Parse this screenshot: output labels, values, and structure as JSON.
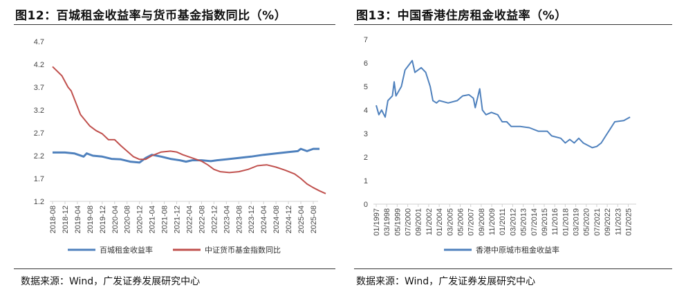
{
  "left": {
    "title": "图12：百城租金收益率与货币基金指数同比（%）",
    "source": "数据来源：Wind，广发证券发展研究中心"
  },
  "right": {
    "title": "图13：中国香港住房租金收益率（%）",
    "source": "数据来源：Wind，广发证券发展研究中心"
  },
  "chart_data": [
    {
      "type": "line",
      "title": "百城租金收益率与货币基金指数同比（%）",
      "ylim": [
        1.2,
        4.7
      ],
      "yticks": [
        "1.2",
        "1.7",
        "2.2",
        "2.7",
        "3.2",
        "3.7",
        "4.2",
        "4.7"
      ],
      "xticks": [
        "2018-08",
        "2018-12",
        "2019-04",
        "2019-08",
        "2019-12",
        "2020-04",
        "2020-08",
        "2020-12",
        "2021-04",
        "2021-08",
        "2021-12",
        "2022-04",
        "2022-08",
        "2022-12",
        "2023-04",
        "2023-08",
        "2023-12",
        "2024-04",
        "2024-08",
        "2024-12",
        "2025-04",
        "2025-08"
      ],
      "x_unit": "months since 2018-08",
      "legend": "bottom",
      "series": [
        {
          "name": "百城租金收益率",
          "color": "#4F81BD",
          "points": [
            [
              0,
              2.27
            ],
            [
              4,
              2.27
            ],
            [
              7,
              2.25
            ],
            [
              10,
              2.18
            ],
            [
              11,
              2.25
            ],
            [
              13,
              2.2
            ],
            [
              16,
              2.18
            ],
            [
              19,
              2.13
            ],
            [
              22,
              2.12
            ],
            [
              25,
              2.07
            ],
            [
              28,
              2.05
            ],
            [
              30,
              2.15
            ],
            [
              32,
              2.22
            ],
            [
              35,
              2.18
            ],
            [
              38,
              2.13
            ],
            [
              41,
              2.1
            ],
            [
              43,
              2.07
            ],
            [
              45,
              2.1
            ],
            [
              48,
              2.1
            ],
            [
              51,
              2.08
            ],
            [
              53,
              2.1
            ],
            [
              56,
              2.12
            ],
            [
              60,
              2.15
            ],
            [
              64,
              2.18
            ],
            [
              68,
              2.22
            ],
            [
              72,
              2.25
            ],
            [
              76,
              2.28
            ],
            [
              79,
              2.3
            ],
            [
              80,
              2.35
            ],
            [
              82,
              2.3
            ],
            [
              84,
              2.35
            ],
            [
              86,
              2.35
            ]
          ]
        },
        {
          "name": "中证货币基金指数同比",
          "color": "#C0504D",
          "points": [
            [
              0,
              4.15
            ],
            [
              3,
              3.95
            ],
            [
              5,
              3.7
            ],
            [
              6,
              3.62
            ],
            [
              9,
              3.1
            ],
            [
              12,
              2.85
            ],
            [
              14,
              2.75
            ],
            [
              16,
              2.68
            ],
            [
              18,
              2.55
            ],
            [
              20,
              2.55
            ],
            [
              22,
              2.42
            ],
            [
              24,
              2.3
            ],
            [
              26,
              2.18
            ],
            [
              28,
              2.12
            ],
            [
              30,
              2.12
            ],
            [
              32,
              2.2
            ],
            [
              35,
              2.28
            ],
            [
              38,
              2.3
            ],
            [
              40,
              2.28
            ],
            [
              42,
              2.22
            ],
            [
              45,
              2.15
            ],
            [
              48,
              2.08
            ],
            [
              50,
              2.0
            ],
            [
              52,
              1.9
            ],
            [
              54,
              1.85
            ],
            [
              57,
              1.83
            ],
            [
              60,
              1.85
            ],
            [
              63,
              1.9
            ],
            [
              66,
              1.98
            ],
            [
              69,
              2.0
            ],
            [
              72,
              1.95
            ],
            [
              75,
              1.88
            ],
            [
              78,
              1.8
            ],
            [
              80,
              1.7
            ],
            [
              82,
              1.58
            ],
            [
              84,
              1.5
            ],
            [
              86,
              1.43
            ],
            [
              88,
              1.37
            ]
          ]
        }
      ]
    },
    {
      "type": "line",
      "title": "中国香港住房租金收益率（%）",
      "ylim": [
        0,
        7
      ],
      "yticks": [
        "0",
        "1",
        "2",
        "3",
        "4",
        "5",
        "6",
        "7"
      ],
      "xticks": [
        "01/1997",
        "03/1998",
        "05/1999",
        "07/2000",
        "09/2001",
        "11/2002",
        "01/2004",
        "03/2005",
        "05/2006",
        "07/2007",
        "09/2008",
        "11/2009",
        "01/2011",
        "03/2012",
        "05/2013",
        "07/2014",
        "09/2015",
        "11/2016",
        "01/2018",
        "03/2019",
        "05/2020",
        "07/2021",
        "09/2022",
        "11/2023",
        "01/2025"
      ],
      "x_unit": "year",
      "legend": "bottom",
      "series": [
        {
          "name": "香港中原城市租金收益率",
          "color": "#4F81BD",
          "points": [
            [
              1997.0,
              4.2
            ],
            [
              1997.3,
              3.8
            ],
            [
              1997.6,
              4.0
            ],
            [
              1998.0,
              3.7
            ],
            [
              1998.3,
              4.4
            ],
            [
              1998.8,
              4.6
            ],
            [
              1999.0,
              5.2
            ],
            [
              1999.2,
              4.6
            ],
            [
              1999.8,
              5.0
            ],
            [
              2000.2,
              5.7
            ],
            [
              2000.6,
              5.9
            ],
            [
              2001.0,
              6.1
            ],
            [
              2001.3,
              5.6
            ],
            [
              2002.0,
              5.8
            ],
            [
              2002.5,
              5.6
            ],
            [
              2003.0,
              5.0
            ],
            [
              2003.3,
              4.4
            ],
            [
              2003.7,
              4.3
            ],
            [
              2004.0,
              4.4
            ],
            [
              2005.0,
              4.3
            ],
            [
              2006.0,
              4.4
            ],
            [
              2006.6,
              4.6
            ],
            [
              2007.3,
              4.65
            ],
            [
              2007.8,
              4.5
            ],
            [
              2008.0,
              4.1
            ],
            [
              2008.5,
              4.9
            ],
            [
              2008.8,
              4.0
            ],
            [
              2009.2,
              3.8
            ],
            [
              2009.8,
              3.9
            ],
            [
              2010.5,
              3.8
            ],
            [
              2011.0,
              3.5
            ],
            [
              2011.5,
              3.5
            ],
            [
              2012.0,
              3.3
            ],
            [
              2013.0,
              3.3
            ],
            [
              2014.0,
              3.25
            ],
            [
              2015.0,
              3.1
            ],
            [
              2016.0,
              3.1
            ],
            [
              2016.5,
              2.9
            ],
            [
              2017.5,
              2.8
            ],
            [
              2018.0,
              2.6
            ],
            [
              2018.5,
              2.75
            ],
            [
              2019.0,
              2.6
            ],
            [
              2019.5,
              2.8
            ],
            [
              2020.0,
              2.6
            ],
            [
              2020.5,
              2.5
            ],
            [
              2021.0,
              2.4
            ],
            [
              2021.5,
              2.45
            ],
            [
              2022.0,
              2.6
            ],
            [
              2022.5,
              2.9
            ],
            [
              2023.0,
              3.2
            ],
            [
              2023.5,
              3.5
            ],
            [
              2024.5,
              3.55
            ],
            [
              2025.2,
              3.7
            ]
          ]
        }
      ]
    }
  ]
}
